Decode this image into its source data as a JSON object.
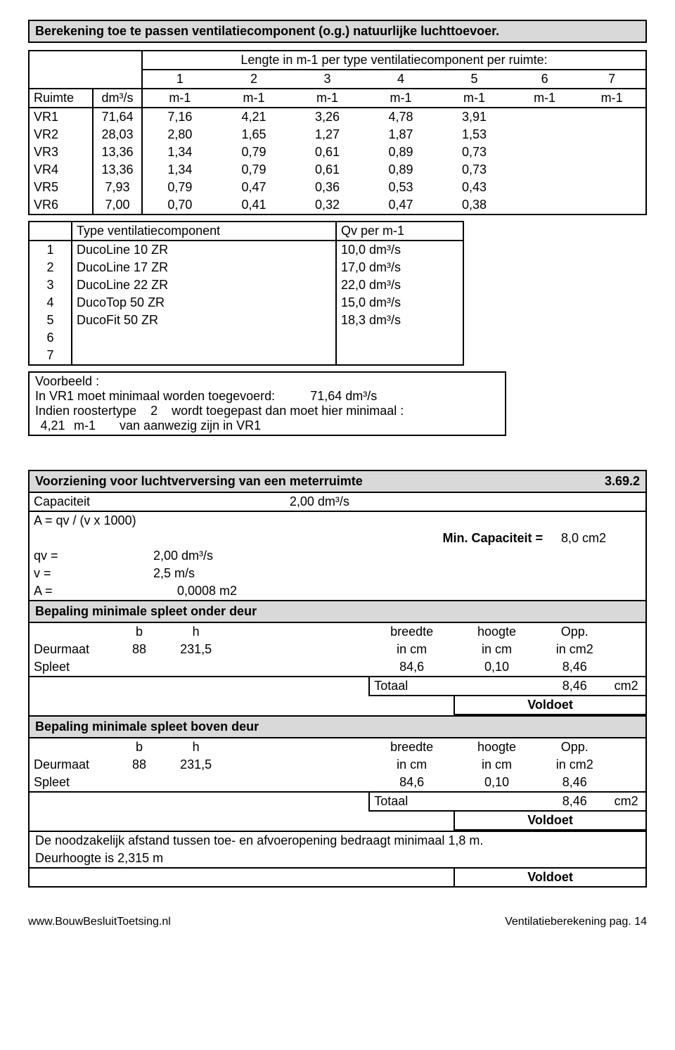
{
  "header_title": "Berekening toe te passen ventilatiecomponent (o.g.) natuurlijke luchttoevoer.",
  "lengte_header": "Lengte in m-1 per type ventilatiecomponent per ruimte:",
  "col_numbers": [
    "1",
    "2",
    "3",
    "4",
    "5",
    "6",
    "7"
  ],
  "ruimte_row": {
    "label": "Ruimte",
    "unit": "dm³/s",
    "vals": [
      "m-1",
      "m-1",
      "m-1",
      "m-1",
      "m-1",
      "m-1",
      "m-1"
    ]
  },
  "vr_rows": [
    {
      "name": "VR1",
      "v0": "71,64",
      "vals": [
        "7,16",
        "4,21",
        "3,26",
        "4,78",
        "3,91",
        "",
        ""
      ]
    },
    {
      "name": "VR2",
      "v0": "28,03",
      "vals": [
        "2,80",
        "1,65",
        "1,27",
        "1,87",
        "1,53",
        "",
        ""
      ]
    },
    {
      "name": "VR3",
      "v0": "13,36",
      "vals": [
        "1,34",
        "0,79",
        "0,61",
        "0,89",
        "0,73",
        "",
        ""
      ]
    },
    {
      "name": "VR4",
      "v0": "13,36",
      "vals": [
        "1,34",
        "0,79",
        "0,61",
        "0,89",
        "0,73",
        "",
        ""
      ]
    },
    {
      "name": "VR5",
      "v0": "7,93",
      "vals": [
        "0,79",
        "0,47",
        "0,36",
        "0,53",
        "0,43",
        "",
        ""
      ]
    },
    {
      "name": "VR6",
      "v0": "7,00",
      "vals": [
        "0,70",
        "0,41",
        "0,32",
        "0,47",
        "0,38",
        "",
        ""
      ]
    }
  ],
  "type_header": {
    "left": "Type ventilatiecomponent",
    "right": "Qv per m-1"
  },
  "type_rows": [
    {
      "n": "1",
      "name": "DucoLine 10 ZR",
      "qv": "10,0 dm³/s"
    },
    {
      "n": "2",
      "name": "DucoLine 17 ZR",
      "qv": "17,0 dm³/s"
    },
    {
      "n": "3",
      "name": "DucoLine 22 ZR",
      "qv": "22,0 dm³/s"
    },
    {
      "n": "4",
      "name": "DucoTop 50 ZR",
      "qv": "15,0 dm³/s"
    },
    {
      "n": "5",
      "name": "DucoFit 50 ZR",
      "qv": "18,3 dm³/s"
    },
    {
      "n": "6",
      "name": "",
      "qv": ""
    },
    {
      "n": "7",
      "name": "",
      "qv": ""
    }
  ],
  "voorbeeld": {
    "title": "Voorbeeld :",
    "line1a": "In VR1 moet minimaal worden toegevoerd:",
    "line1b": "71,64 dm³/s",
    "line2a": "Indien roostertype",
    "line2b": "2",
    "line2c": "wordt toegepast dan moet hier minimaal :",
    "line3a": "4,21",
    "line3b": "m-1",
    "line3c": "van aanwezig zijn in VR1"
  },
  "voorziening": {
    "title": "Voorziening voor luchtverversing van een meterruimte",
    "ref": "3.69.2",
    "cap_label": "Capaciteit",
    "cap_val": "2,00 dm³/s",
    "formula": "A = qv / (v x 1000)",
    "mincap_label": "Min. Capaciteit =",
    "mincap_val": "8,0 cm2",
    "qv_label": "qv =",
    "qv_val": "2,00 dm³/s",
    "v_label": "v =",
    "v_val": "2,5 m/s",
    "a_label": "A =",
    "a_val": "0,0008 m2"
  },
  "spleet_onder": {
    "title": "Bepaling minimale spleet onder deur",
    "cols": {
      "b": "b",
      "h": "h",
      "breedte": "breedte",
      "hoogte": "hoogte",
      "opp": "Opp."
    },
    "deurmaat_lbl": "Deurmaat",
    "deurmaat_b": "88",
    "deurmaat_h": "231,5",
    "units": {
      "b": "in cm",
      "h": "in cm",
      "o": "in cm2"
    },
    "spleet_lbl": "Spleet",
    "spleet_b": "84,6",
    "spleet_h": "0,10",
    "spleet_o": "8,46",
    "totaal_lbl": "Totaal",
    "totaal_v": "8,46",
    "totaal_u": "cm2",
    "result": "Voldoet"
  },
  "spleet_boven": {
    "title": "Bepaling minimale spleet boven deur",
    "cols": {
      "b": "b",
      "h": "h",
      "breedte": "breedte",
      "hoogte": "hoogte",
      "opp": "Opp."
    },
    "deurmaat_lbl": "Deurmaat",
    "deurmaat_b": "88",
    "deurmaat_h": "231,5",
    "units": {
      "b": "in cm",
      "h": "in cm",
      "o": "in cm2"
    },
    "spleet_lbl": "Spleet",
    "spleet_b": "84,6",
    "spleet_h": "0,10",
    "spleet_o": "8,46",
    "totaal_lbl": "Totaal",
    "totaal_v": "8,46",
    "totaal_u": "cm2",
    "result": "Voldoet"
  },
  "afstand": {
    "line1": "De noodzakelijk afstand tussen toe- en afvoeropening bedraagt minimaal 1,8 m.",
    "line2": "Deurhoogte is 2,315 m",
    "result": "Voldoet"
  },
  "footer": {
    "left": "www.BouwBesluitToetsing.nl",
    "right": "Ventilatieberekening pag. 14"
  }
}
